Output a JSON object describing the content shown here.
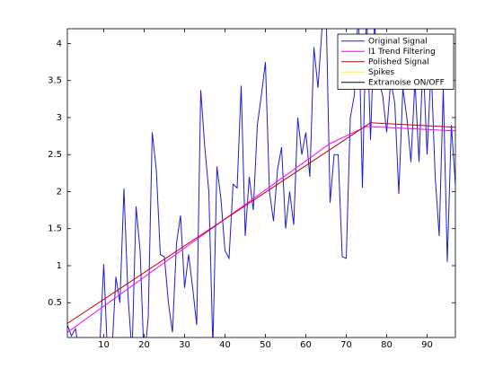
{
  "chart_data": {
    "type": "line",
    "xlim": [
      1,
      97
    ],
    "ylim": [
      0.03,
      4.2
    ],
    "xticks": [
      10,
      20,
      30,
      40,
      50,
      60,
      70,
      80,
      90
    ],
    "yticks": [
      0.5,
      1,
      1.5,
      2,
      2.5,
      3,
      3.5,
      4
    ],
    "legend": "upper right",
    "series": [
      {
        "name": "Original Signal",
        "color": "#1c1cd4",
        "x": [
          1,
          2,
          3,
          4,
          5,
          6,
          7,
          8,
          9,
          10,
          11,
          12,
          13,
          14,
          15,
          16,
          17,
          18,
          19,
          20,
          21,
          22,
          23,
          24,
          25,
          26,
          27,
          28,
          29,
          30,
          31,
          32,
          33,
          34,
          35,
          36,
          37,
          38,
          39,
          40,
          41,
          42,
          43,
          44,
          45,
          46,
          47,
          48,
          49,
          50,
          51,
          52,
          53,
          54,
          55,
          56,
          57,
          58,
          59,
          60,
          61,
          62,
          63,
          64,
          65,
          66,
          67,
          68,
          69,
          70,
          71,
          72,
          73,
          74,
          75,
          76,
          77,
          78,
          79,
          80,
          81,
          82,
          83,
          84,
          85,
          86,
          87,
          88,
          89,
          90,
          91,
          92,
          93,
          94,
          95,
          96,
          97
        ],
        "values": [
          0.2,
          0.05,
          0.15,
          -0.2,
          -0.3,
          -0.1,
          -0.4,
          -0.2,
          -0.1,
          1.02,
          -0.3,
          -0.2,
          0.85,
          0.5,
          2.04,
          0.6,
          -0.2,
          1.8,
          1.2,
          -0.3,
          0.3,
          2.8,
          2.3,
          1.15,
          1.12,
          0.5,
          0.1,
          1.3,
          1.68,
          0.7,
          1.15,
          0.7,
          0.2,
          3.37,
          2.6,
          2.0,
          -0.1,
          2.34,
          1.9,
          1.2,
          1.1,
          2.1,
          2.05,
          3.43,
          1.4,
          2.2,
          1.75,
          2.9,
          3.3,
          3.75,
          2.0,
          1.6,
          2.3,
          2.6,
          1.5,
          2.0,
          1.55,
          3.0,
          2.5,
          2.8,
          2.2,
          3.95,
          3.4,
          4.2,
          4.5,
          1.85,
          2.5,
          2.5,
          1.12,
          1.1,
          3.0,
          3.3,
          4.5,
          2.05,
          4.5,
          2.7,
          4.3,
          3.5,
          3.3,
          2.8,
          3.5,
          3.2,
          1.97,
          3.4,
          3.0,
          2.4,
          3.5,
          2.4,
          3.8,
          2.5,
          3.7,
          2.2,
          1.4,
          3.4,
          1.05,
          2.9,
          2.1
        ]
      },
      {
        "name": "l1 Trend Filtering",
        "color": "#ff00ff",
        "x": [
          1,
          66,
          75,
          97
        ],
        "values": [
          0.1,
          2.65,
          2.88,
          2.82
        ]
      },
      {
        "name": "Polished Signal",
        "color": "#cc0000",
        "x": [
          1,
          76,
          97
        ],
        "values": [
          0.22,
          2.93,
          2.87
        ]
      },
      {
        "name": "Spikes",
        "color": "#ffff00",
        "x": [],
        "values": []
      },
      {
        "name": "Extranoise ON/OFF",
        "color": "#000000",
        "x": [],
        "values": []
      }
    ]
  }
}
